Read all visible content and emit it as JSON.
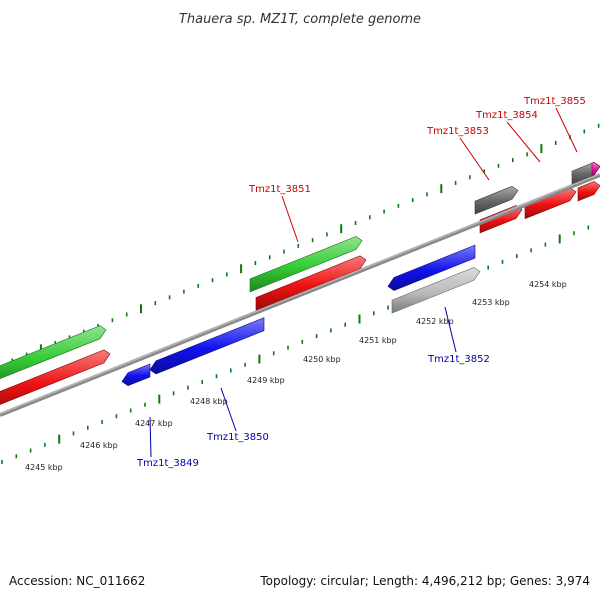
{
  "title": "Thauera sp. MZ1T, complete genome",
  "footer": {
    "accession": "Accession: NC_011662",
    "summary": "Topology: circular; Length: 4,496,212 bp; Genes: 3,974"
  },
  "colors": {
    "forward_cds": "#ee1111",
    "reverse_cds": "#1111ee",
    "rna_like": "#33cc33",
    "pseudo": "#666666",
    "other": "#e0119a",
    "light_gene": "#bbbbbb",
    "ticks": "#117711",
    "backbone": "#888888",
    "forward_label": "#cc0000",
    "reverse_label": "#0000aa"
  },
  "scale_labels": [
    "4245 kbp",
    "4246 kbp",
    "4247 kbp",
    "4248 kbp",
    "4249 kbp",
    "4250 kbp",
    "4251 kbp",
    "4252 kbp",
    "4253 kbp",
    "4254 kbp"
  ],
  "gene_labels": [
    {
      "id": "tmz1t-3849",
      "text": "Tmz1t_3849",
      "strand": "reverse"
    },
    {
      "id": "tmz1t-3850",
      "text": "Tmz1t_3850",
      "strand": "reverse"
    },
    {
      "id": "tmz1t-3851",
      "text": "Tmz1t_3851",
      "strand": "forward"
    },
    {
      "id": "tmz1t-3852",
      "text": "Tmz1t_3852",
      "strand": "reverse"
    },
    {
      "id": "tmz1t-3853",
      "text": "Tmz1t_3853",
      "strand": "forward"
    },
    {
      "id": "tmz1t-3854",
      "text": "Tmz1t_3854",
      "strand": "forward"
    },
    {
      "id": "tmz1t-3855",
      "text": "Tmz1t_3855",
      "strand": "forward"
    }
  ]
}
